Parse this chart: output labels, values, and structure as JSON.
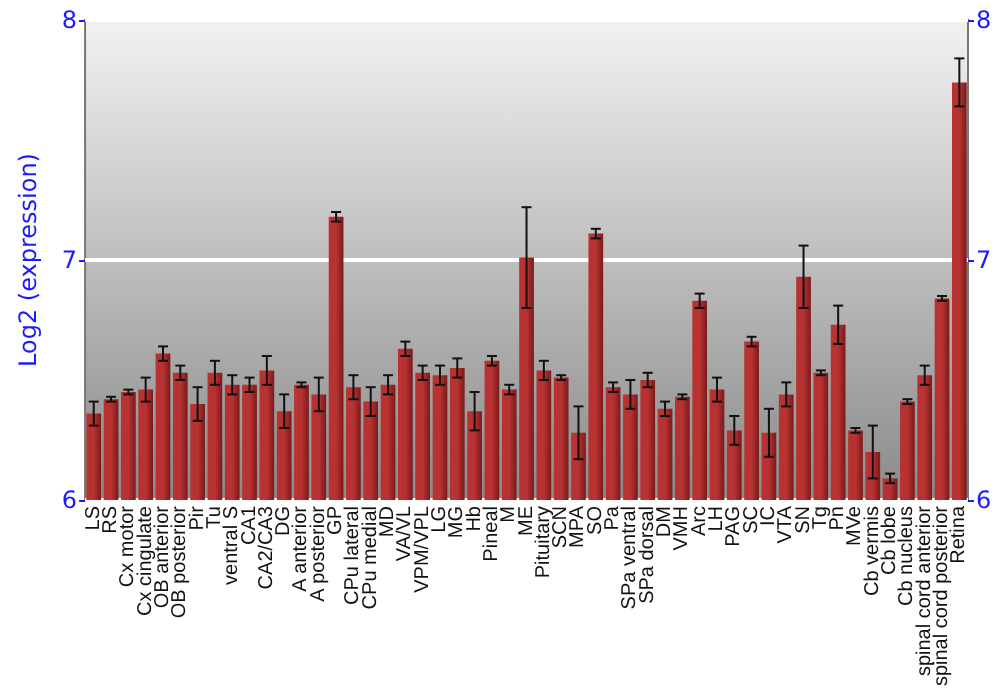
{
  "chart_data": {
    "type": "bar",
    "ylabel": "Log2 (expression)",
    "categories": [
      "LS",
      "RS",
      "Cx motor",
      "Cx cingulate",
      "OB anterior",
      "OB posterior",
      "Pir",
      "Tu",
      "ventral S",
      "CA1",
      "CA2/CA3",
      "DG",
      "A anterior",
      "A posterior",
      "GP",
      "CPu lateral",
      "CPu medial",
      "MD",
      "VA/VL",
      "VPM/VPL",
      "LG",
      "MG",
      "Hb",
      "Pineal",
      "M",
      "ME",
      "Pituitary",
      "SCN",
      "MPA",
      "SO",
      "Pa",
      "SPa ventral",
      "SPa dorsal",
      "DM",
      "VMH",
      "Arc",
      "LH",
      "PAG",
      "SC",
      "IC",
      "VTA",
      "SN",
      "Tg",
      "Pn",
      "MVe",
      "Cb vermis",
      "Cb lobe",
      "Cb nucleus",
      "spinal cord anterior",
      "spinal cord posterior",
      "Retina"
    ],
    "values": [
      6.36,
      6.42,
      6.45,
      6.46,
      6.61,
      6.53,
      6.4,
      6.53,
      6.48,
      6.48,
      6.54,
      6.37,
      6.48,
      6.44,
      7.18,
      6.47,
      6.41,
      6.48,
      6.63,
      6.53,
      6.52,
      6.55,
      6.37,
      6.58,
      6.46,
      7.01,
      6.54,
      6.51,
      6.28,
      7.11,
      6.47,
      6.44,
      6.5,
      6.38,
      6.43,
      6.83,
      6.46,
      6.29,
      6.66,
      6.28,
      6.44,
      6.93,
      6.53,
      6.73,
      6.29,
      6.2,
      6.09,
      6.41,
      6.52,
      6.84,
      7.74
    ],
    "errors": [
      0.05,
      0.01,
      0.01,
      0.05,
      0.03,
      0.03,
      0.07,
      0.05,
      0.04,
      0.03,
      0.06,
      0.07,
      0.01,
      0.07,
      0.02,
      0.05,
      0.06,
      0.04,
      0.03,
      0.03,
      0.04,
      0.04,
      0.08,
      0.02,
      0.02,
      0.21,
      0.04,
      0.01,
      0.11,
      0.02,
      0.02,
      0.06,
      0.03,
      0.03,
      0.01,
      0.03,
      0.05,
      0.06,
      0.02,
      0.1,
      0.05,
      0.13,
      0.01,
      0.08,
      0.01,
      0.11,
      0.02,
      0.01,
      0.04,
      0.01,
      0.1
    ],
    "color": "#b83232",
    "ylim": [
      6,
      8
    ],
    "yticks": [
      6,
      7,
      8
    ],
    "y2lim": [
      6,
      8
    ],
    "y2ticks": [
      6,
      7,
      8
    ],
    "grid": "y"
  }
}
